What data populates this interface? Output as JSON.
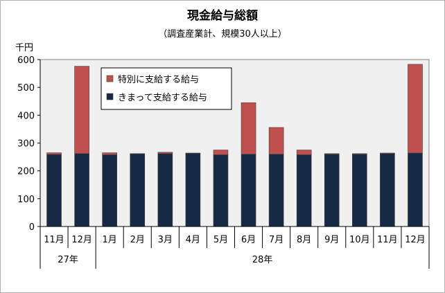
{
  "chart_data": {
    "type": "bar",
    "stacked": true,
    "title": "現金給与総額",
    "subtitle": "（調査産業計、規模30人以上）",
    "ylabel": "千円",
    "ylim": [
      0,
      600
    ],
    "yticks": [
      0,
      100,
      200,
      300,
      400,
      500,
      600
    ],
    "grid": false,
    "legend_position": "top-left inside",
    "categories": [
      "11月",
      "12月",
      "1月",
      "2月",
      "3月",
      "4月",
      "5月",
      "6月",
      "7月",
      "8月",
      "9月",
      "10月",
      "11月",
      "12月"
    ],
    "year_groups": [
      {
        "label": "27年",
        "count": 2
      },
      {
        "label": "28年",
        "count": 12
      }
    ],
    "series": [
      {
        "name": "きまって支給する給与",
        "color": "#172a44",
        "values": [
          259,
          262,
          258,
          261,
          262,
          263,
          258,
          260,
          260,
          258,
          260,
          260,
          262,
          264
        ]
      },
      {
        "name": "特別に支給する給与",
        "color": "#c0504d",
        "values": [
          6,
          314,
          7,
          1,
          5,
          1,
          17,
          185,
          96,
          17,
          2,
          2,
          2,
          319
        ]
      }
    ],
    "legend_order": [
      "特別に支給する給与",
      "きまって支給する給与"
    ],
    "plot_background": "#f0f0f0"
  }
}
